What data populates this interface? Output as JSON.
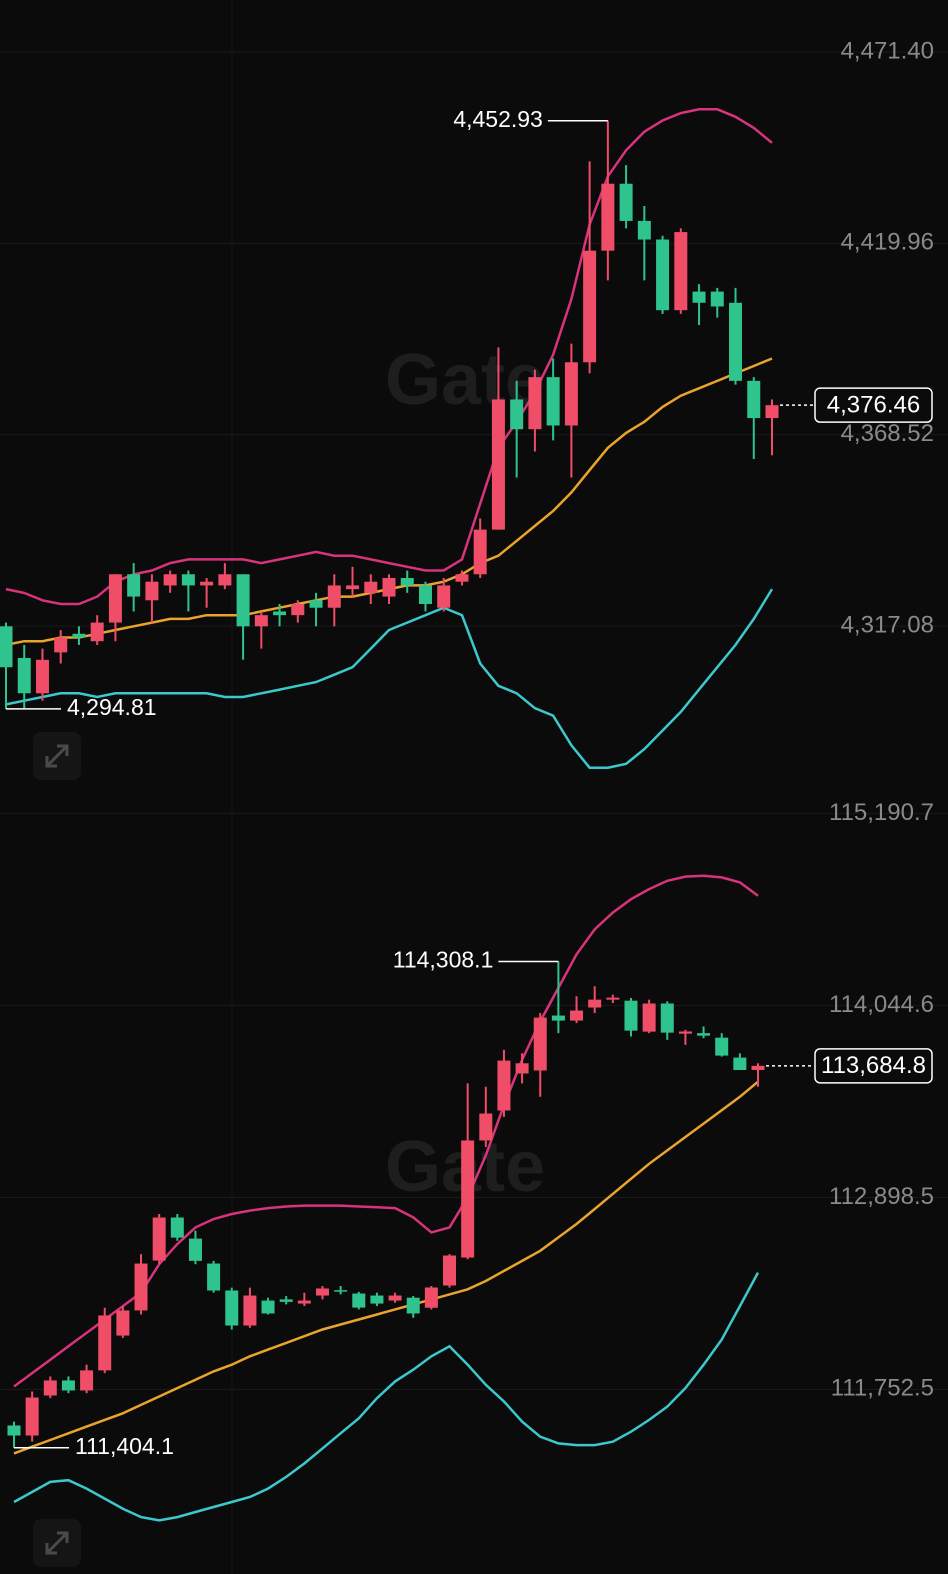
{
  "chart_data": [
    {
      "type": "candlestick",
      "watermark": "Gate",
      "grid": true,
      "up_color": "#f04d68",
      "down_color": "#2fc48d",
      "ylim": [
        4273.8,
        4485.4
      ],
      "yticks": [
        {
          "value": 4317.08,
          "label": "4,317.08"
        },
        {
          "value": 4368.52,
          "label": "4,368.52"
        },
        {
          "value": 4419.96,
          "label": "4,419.96"
        },
        {
          "value": 4471.4,
          "label": "4,471.40"
        }
      ],
      "open": [
        4317,
        4308.5,
        4299,
        4310,
        4315,
        4313,
        4318,
        4331,
        4324,
        4328,
        4331,
        4328,
        4328,
        4331,
        4317,
        4321,
        4320,
        4324,
        4322,
        4327,
        4326,
        4325,
        4330,
        4328,
        4322,
        4329,
        4331,
        4343,
        4378,
        4370,
        4384,
        4371,
        4388,
        4418,
        4436,
        4426,
        4421,
        4402,
        4407,
        4407,
        4404,
        4383,
        4373
      ],
      "high": [
        4318,
        4312,
        4311,
        4316,
        4317,
        4320,
        4331,
        4334,
        4331,
        4332,
        4332,
        4330,
        4334,
        4331,
        4321,
        4323,
        4324,
        4326,
        4331,
        4333,
        4331,
        4331,
        4332,
        4329,
        4330,
        4332,
        4346,
        4392,
        4383,
        4386,
        4389,
        4393,
        4442,
        4452.93,
        4441,
        4430,
        4422,
        4424,
        4409,
        4408,
        4408,
        4384,
        4378
      ],
      "low": [
        4294.81,
        4295,
        4297,
        4307,
        4312,
        4312,
        4313,
        4321,
        4318,
        4326,
        4321,
        4322,
        4327,
        4308,
        4311,
        4317,
        4318,
        4317,
        4317,
        4325,
        4323,
        4323,
        4326,
        4321,
        4321,
        4328,
        4330,
        4343,
        4357,
        4364,
        4367,
        4357,
        4385,
        4410,
        4424,
        4410,
        4401,
        4401,
        4398,
        4400,
        4382,
        4362,
        4363
      ],
      "close": [
        4306,
        4299,
        4308,
        4314,
        4314,
        4318,
        4331,
        4325,
        4329,
        4331,
        4328,
        4329,
        4331,
        4317,
        4320,
        4320,
        4323,
        4322,
        4328,
        4328,
        4329,
        4330,
        4328,
        4323,
        4328,
        4331,
        4343,
        4378,
        4370,
        4384,
        4371,
        4388,
        4418,
        4436,
        4426,
        4421,
        4402,
        4423,
        4404,
        4403,
        4383,
        4373,
        4376.46
      ],
      "bands": [
        {
          "color": "#d8337c",
          "values": [
            4327,
            4326,
            4324,
            4323,
            4323,
            4325,
            4329,
            4331,
            4332,
            4334,
            4335,
            4335,
            4335,
            4335,
            4334,
            4335,
            4336,
            4337,
            4336,
            4336,
            4335,
            4334,
            4333,
            4332,
            4332,
            4335,
            4350,
            4365,
            4372,
            4380,
            4390,
            4405,
            4425,
            4438,
            4445,
            4450,
            4453,
            4455,
            4456,
            4456,
            4454,
            4451,
            4447
          ]
        },
        {
          "color": "#eaa42e",
          "values": [
            4312,
            4313,
            4313,
            4314,
            4314,
            4315,
            4316,
            4317,
            4318,
            4319,
            4319,
            4320,
            4320,
            4320,
            4321,
            4322,
            4323,
            4324,
            4325,
            4325,
            4326,
            4327,
            4328,
            4328,
            4329,
            4331,
            4334,
            4336,
            4340,
            4344,
            4348,
            4353,
            4359,
            4365,
            4369,
            4372,
            4376,
            4379,
            4381,
            4383,
            4385,
            4387,
            4389
          ]
        },
        {
          "color": "#3cc8cc",
          "values": [
            4296,
            4297,
            4298,
            4299,
            4299,
            4298,
            4299,
            4299,
            4299,
            4299,
            4299,
            4299,
            4298,
            4298,
            4299,
            4300,
            4301,
            4302,
            4304,
            4306,
            4311,
            4316,
            4318,
            4320,
            4322,
            4320,
            4307,
            4301,
            4299,
            4295,
            4293,
            4285,
            4279,
            4279,
            4280,
            4284,
            4289,
            4294,
            4300,
            4306,
            4312,
            4319,
            4327
          ]
        }
      ],
      "annotations": [
        {
          "value": 4452.93,
          "label": "4,452.93"
        },
        {
          "value": 4294.81,
          "label": "4,294.81"
        }
      ],
      "last_price": {
        "value": 4376.46,
        "label": "4,376.46"
      }
    },
    {
      "type": "candlestick",
      "watermark": "Gate",
      "grid": true,
      "up_color": "#f04d68",
      "down_color": "#2fc48d",
      "ylim": [
        110650,
        115350
      ],
      "yticks": [
        {
          "value": 111752.5,
          "label": "111,752.5"
        },
        {
          "value": 112898.5,
          "label": "112,898.5"
        },
        {
          "value": 114044.6,
          "label": "114,044.6"
        },
        {
          "value": 115190.7,
          "label": "115,190.7"
        }
      ],
      "open": [
        111537,
        111477,
        111716,
        111806,
        111746,
        111866,
        112074,
        112224,
        112522,
        112779,
        112653,
        112504,
        112343,
        112134,
        112283,
        112290,
        112265,
        112313,
        112345,
        112325,
        112313,
        112283,
        112300,
        112240,
        112373,
        112540,
        113239,
        113418,
        113639,
        113657,
        113985,
        113955,
        114033,
        114080,
        114074,
        113889,
        114057,
        113877,
        113880,
        113853,
        113734,
        113660
      ],
      "high": [
        111560,
        111740,
        111830,
        111830,
        111900,
        112240,
        112250,
        112560,
        112800,
        112800,
        112700,
        112520,
        112360,
        112360,
        112300,
        112310,
        112330,
        112370,
        112370,
        112335,
        112330,
        112330,
        112310,
        112370,
        112560,
        113580,
        113560,
        113780,
        113760,
        114000,
        114308.1,
        114100,
        114160,
        114110,
        114090,
        114080,
        114070,
        113900,
        113920,
        113880,
        113760,
        113700
      ],
      "low": [
        111404.1,
        111440,
        111700,
        111730,
        111730,
        111850,
        112060,
        112200,
        112500,
        112640,
        112500,
        112330,
        112110,
        112120,
        112200,
        112260,
        112250,
        112290,
        112320,
        112230,
        112250,
        112270,
        112180,
        112230,
        112360,
        112530,
        113200,
        113380,
        113580,
        113500,
        113880,
        113940,
        114000,
        114060,
        113860,
        113880,
        113840,
        113810,
        113850,
        113740,
        113660,
        113560
      ],
      "close": [
        111477,
        111704,
        111806,
        111746,
        111866,
        112194,
        112224,
        112504,
        112779,
        112659,
        112520,
        112343,
        112134,
        112313,
        112206,
        112275,
        112283,
        112355,
        112337,
        112241,
        112265,
        112313,
        112206,
        112361,
        112552,
        113239,
        113400,
        113716,
        113700,
        113973,
        113955,
        114015,
        114080,
        114092,
        113895,
        114057,
        113883,
        113890,
        113865,
        113746,
        113660,
        113684.8
      ],
      "bands": [
        {
          "color": "#d8337c",
          "values": [
            111770,
            111850,
            111930,
            112010,
            112090,
            112170,
            112250,
            112330,
            112500,
            112620,
            112720,
            112770,
            112800,
            112820,
            112835,
            112845,
            112850,
            112850,
            112850,
            112845,
            112840,
            112835,
            112780,
            112690,
            112720,
            112900,
            113150,
            113450,
            113720,
            113950,
            114150,
            114350,
            114500,
            114600,
            114680,
            114740,
            114790,
            114815,
            114820,
            114810,
            114780,
            114700
          ]
        },
        {
          "color": "#eaa42e",
          "values": [
            111370,
            111410,
            111450,
            111490,
            111530,
            111570,
            111610,
            111660,
            111710,
            111760,
            111810,
            111860,
            111900,
            111950,
            111990,
            112030,
            112070,
            112110,
            112140,
            112170,
            112200,
            112230,
            112260,
            112290,
            112320,
            112350,
            112400,
            112460,
            112520,
            112580,
            112660,
            112740,
            112830,
            112920,
            113010,
            113100,
            113180,
            113260,
            113340,
            113420,
            113500,
            113590
          ]
        },
        {
          "color": "#3cc8cc",
          "values": [
            111080,
            111140,
            111200,
            111210,
            111160,
            111100,
            111040,
            110990,
            110970,
            110990,
            111020,
            111050,
            111080,
            111110,
            111160,
            111230,
            111310,
            111400,
            111490,
            111580,
            111700,
            111800,
            111870,
            111950,
            112010,
            111900,
            111780,
            111680,
            111560,
            111470,
            111430,
            111420,
            111420,
            111440,
            111500,
            111570,
            111650,
            111760,
            111900,
            112050,
            112250,
            112450
          ]
        }
      ],
      "annotations": [
        {
          "value": 114308.1,
          "label": "114,308.1"
        },
        {
          "value": 111404.1,
          "label": "111,404.1"
        }
      ],
      "last_price": {
        "value": 113684.8,
        "label": "113,684.8"
      }
    }
  ]
}
